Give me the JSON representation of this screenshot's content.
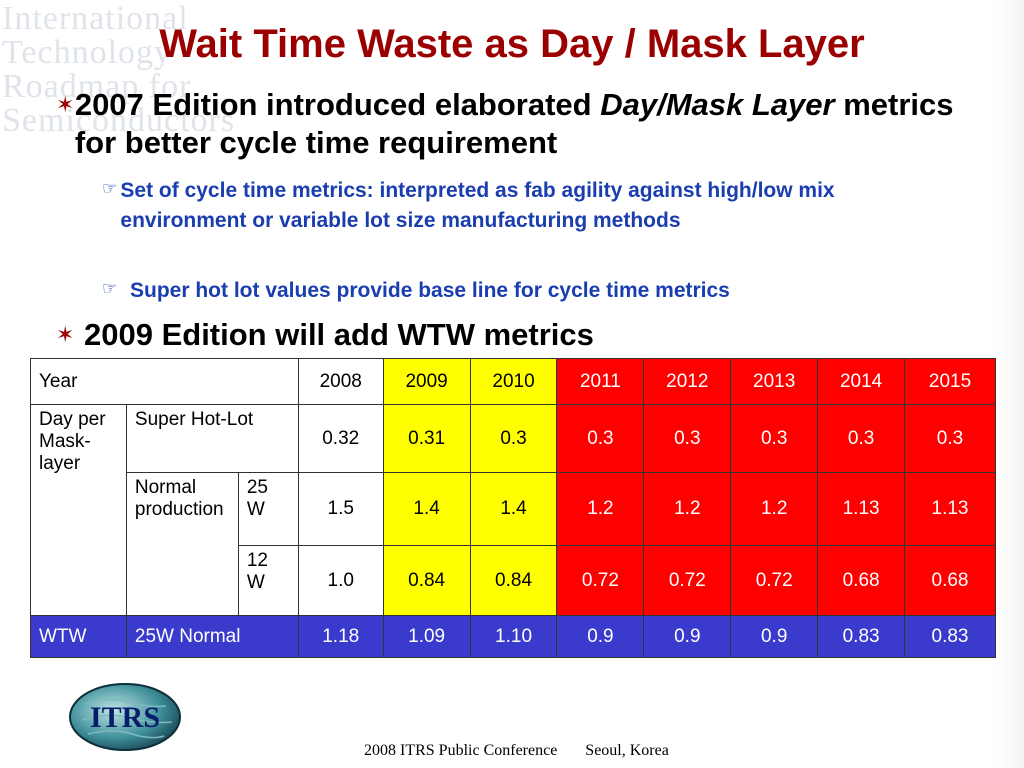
{
  "title": "Wait Time Waste as Day / Mask Layer",
  "bullets": {
    "b1": {
      "part1": "2007 Edition introduced  elaborated ",
      "italic": "Day/Mask Layer",
      "part2": " metrics for better cycle time requirement"
    },
    "sub1": "Set of cycle time metrics: interpreted as  fab agility against high/low mix environment or variable lot size manufacturing methods",
    "sub2": "Super hot lot values provide base line for cycle time metrics",
    "b2": "2009 Edition will add WTW metrics"
  },
  "table": {
    "year_label": "Year",
    "years": [
      "2008",
      "2009",
      "2010",
      "2011",
      "2012",
      "2013",
      "2014",
      "2015"
    ],
    "group_label": "Day per Mask-layer",
    "super_hot_label": "Super Hot-Lot",
    "super_hot_values": [
      "0.32",
      "0.31",
      "0.3",
      "0.3",
      "0.3",
      "0.3",
      "0.3",
      "0.3"
    ],
    "normal_label": "Normal production",
    "w25_label": "25 W",
    "w25_values": [
      "1.5",
      "1.4",
      "1.4",
      "1.2",
      "1.2",
      "1.2",
      "1.13",
      "1.13"
    ],
    "w12_label": "12 W",
    "w12_values": [
      "1.0",
      "0.84",
      "0.84",
      "0.72",
      "0.72",
      "0.72",
      "0.68",
      "0.68"
    ],
    "wtw_label": "WTW",
    "wtw_sub_label": "25W Normal",
    "wtw_values": [
      "1.18",
      "1.09",
      "1.10",
      "0.9",
      "0.9",
      "0.9",
      "0.83",
      "0.83"
    ]
  },
  "watermark": [
    "International",
    "Technology",
    "Roadmap for",
    "Semiconductors"
  ],
  "logo_text": "ITRS",
  "footer": {
    "conference": "2008 ITRS Public Conference",
    "location": "Seoul, Korea"
  },
  "colors": {
    "title": "#9b0000",
    "subbullet": "#1a3db0",
    "yellow": "#ffff00",
    "red": "#ff0000",
    "wtw_blue": "#3a3acc"
  },
  "icons": {
    "level1": "star-bullet-icon",
    "level2": "pointing-hand-icon"
  }
}
